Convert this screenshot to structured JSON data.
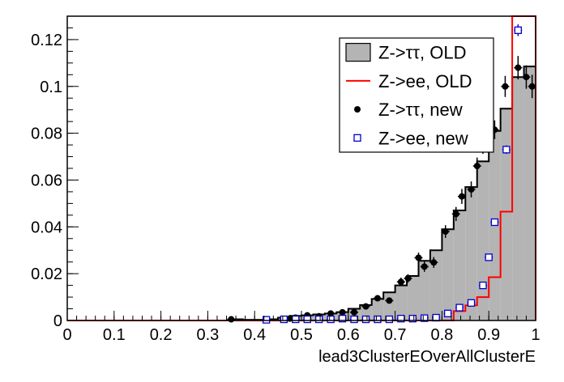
{
  "chart_data": {
    "type": "histogram",
    "xlabel": "lead3ClusterEOverAllClusterE",
    "ylabel": "",
    "xlim": [
      0,
      1
    ],
    "ylim": [
      0,
      0.13
    ],
    "bin_width": 0.025,
    "x_ticks": [
      0,
      0.1,
      0.2,
      0.3,
      0.4,
      0.5,
      0.6,
      0.7,
      0.8,
      0.9,
      1
    ],
    "x_tick_labels": [
      "0",
      "0.1",
      "0.2",
      "0.3",
      "0.4",
      "0.5",
      "0.6",
      "0.7",
      "0.8",
      "0.9",
      "1"
    ],
    "y_ticks": [
      0,
      0.02,
      0.04,
      0.06,
      0.08,
      0.1,
      0.12
    ],
    "y_tick_labels": [
      "0",
      "0.02",
      "0.04",
      "0.06",
      "0.08",
      "0.1",
      "0.12"
    ],
    "legend_position": "top-right",
    "series": [
      {
        "name": "Z->ττ, OLD",
        "style": "filled-histogram",
        "fill": "#b4b4b4",
        "line": "#000000",
        "values": [
          0,
          0,
          0,
          0,
          0,
          0,
          0,
          0,
          0,
          0,
          0,
          0,
          0,
          0,
          0.0005,
          0.0003,
          0.0003,
          0.0005,
          0.0012,
          0.002,
          0.0022,
          0.0026,
          0.003,
          0.0036,
          0.005,
          0.0066,
          0.0092,
          0.012,
          0.015,
          0.019,
          0.0255,
          0.03,
          0.039,
          0.047,
          0.057,
          0.068,
          0.081,
          0.0905,
          0.104,
          0.1085
        ]
      },
      {
        "name": "Z->ee, OLD",
        "style": "line-histogram",
        "line": "#ff0000",
        "values": [
          0,
          0,
          0,
          0,
          0,
          0,
          0,
          0,
          0,
          0,
          0,
          0,
          0,
          0,
          0,
          0,
          0,
          0,
          0,
          0,
          0,
          0,
          0,
          0,
          0,
          0,
          0,
          0,
          0,
          0,
          0,
          0,
          0,
          0.004,
          0.0065,
          0.01,
          0.0185,
          0.0465,
          0.131,
          0.131
        ]
      },
      {
        "name": "Z->ττ, new",
        "style": "points-errors",
        "marker": "filled-circle",
        "color": "#000000",
        "points": [
          {
            "x": 0.35,
            "y": 0.0005,
            "err": 0.0004
          },
          {
            "x": 0.425,
            "y": 0.0003,
            "err": 0.0004
          },
          {
            "x": 0.475,
            "y": 0.0008,
            "err": 0.0005
          },
          {
            "x": 0.4875,
            "y": 0.0012,
            "err": 0.0006
          },
          {
            "x": 0.5125,
            "y": 0.0022,
            "err": 0.0007
          },
          {
            "x": 0.5375,
            "y": 0.0018,
            "err": 0.0007
          },
          {
            "x": 0.5625,
            "y": 0.003,
            "err": 0.0008
          },
          {
            "x": 0.5875,
            "y": 0.0035,
            "err": 0.0008
          },
          {
            "x": 0.6125,
            "y": 0.0035,
            "err": 0.0009
          },
          {
            "x": 0.6375,
            "y": 0.006,
            "err": 0.001
          },
          {
            "x": 0.6625,
            "y": 0.0095,
            "err": 0.0012
          },
          {
            "x": 0.6875,
            "y": 0.0085,
            "err": 0.0012
          },
          {
            "x": 0.7125,
            "y": 0.0165,
            "err": 0.0018
          },
          {
            "x": 0.7275,
            "y": 0.018,
            "err": 0.0018
          },
          {
            "x": 0.75,
            "y": 0.0268,
            "err": 0.0022
          },
          {
            "x": 0.7625,
            "y": 0.023,
            "err": 0.0022
          },
          {
            "x": 0.7825,
            "y": 0.0248,
            "err": 0.0023
          },
          {
            "x": 0.8075,
            "y": 0.038,
            "err": 0.0027
          },
          {
            "x": 0.83,
            "y": 0.0455,
            "err": 0.003
          },
          {
            "x": 0.8425,
            "y": 0.053,
            "err": 0.0032
          },
          {
            "x": 0.8625,
            "y": 0.056,
            "err": 0.0034
          },
          {
            "x": 0.875,
            "y": 0.066,
            "err": 0.0036
          },
          {
            "x": 0.8875,
            "y": 0.075,
            "err": 0.0038
          },
          {
            "x": 0.9125,
            "y": 0.0815,
            "err": 0.004
          },
          {
            "x": 0.935,
            "y": 0.1,
            "err": 0.0045
          },
          {
            "x": 0.9625,
            "y": 0.108,
            "err": 0.005
          },
          {
            "x": 0.98,
            "y": 0.104,
            "err": 0.005
          },
          {
            "x": 0.9925,
            "y": 0.1,
            "err": 0.005
          }
        ]
      },
      {
        "name": "Z->ee, new",
        "style": "points-errors",
        "marker": "open-square",
        "color": "#0000cc",
        "points": [
          {
            "x": 0.425,
            "y": 0.0003,
            "err": 0.0002
          },
          {
            "x": 0.4625,
            "y": 0.0005,
            "err": 0.0002
          },
          {
            "x": 0.4875,
            "y": 0.0005,
            "err": 0.0002
          },
          {
            "x": 0.5125,
            "y": 0.0005,
            "err": 0.0002
          },
          {
            "x": 0.5375,
            "y": 0.0005,
            "err": 0.0002
          },
          {
            "x": 0.5625,
            "y": 0.0005,
            "err": 0.0002
          },
          {
            "x": 0.5875,
            "y": 0.0008,
            "err": 0.0002
          },
          {
            "x": 0.6125,
            "y": 0.0005,
            "err": 0.0002
          },
          {
            "x": 0.6375,
            "y": 0.0005,
            "err": 0.0002
          },
          {
            "x": 0.6625,
            "y": 0.0005,
            "err": 0.0002
          },
          {
            "x": 0.6875,
            "y": 0.0005,
            "err": 0.0002
          },
          {
            "x": 0.7125,
            "y": 0.0008,
            "err": 0.0002
          },
          {
            "x": 0.7375,
            "y": 0.0008,
            "err": 0.0002
          },
          {
            "x": 0.7625,
            "y": 0.001,
            "err": 0.0003
          },
          {
            "x": 0.7875,
            "y": 0.0012,
            "err": 0.0003
          },
          {
            "x": 0.8125,
            "y": 0.003,
            "err": 0.0004
          },
          {
            "x": 0.8375,
            "y": 0.0055,
            "err": 0.0005
          },
          {
            "x": 0.8625,
            "y": 0.0075,
            "err": 0.0006
          },
          {
            "x": 0.8875,
            "y": 0.015,
            "err": 0.0008
          },
          {
            "x": 0.9,
            "y": 0.027,
            "err": 0.001
          },
          {
            "x": 0.9125,
            "y": 0.042,
            "err": 0.0012
          },
          {
            "x": 0.9375,
            "y": 0.073,
            "err": 0.0018
          },
          {
            "x": 0.9625,
            "y": 0.124,
            "err": 0.0025
          }
        ]
      }
    ]
  }
}
